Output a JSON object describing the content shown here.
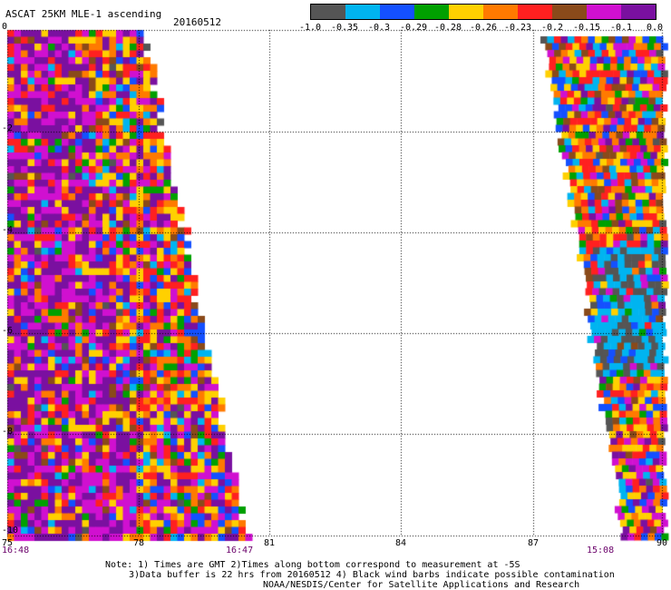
{
  "header": {
    "title": "ASCAT 25KM MLE-1 ascending",
    "date": "20160512"
  },
  "colorbar": {
    "colors": [
      "#555555",
      "#00b4f0",
      "#1450ff",
      "#00a000",
      "#ffd000",
      "#ff7a00",
      "#ff2020",
      "#8a4a1a",
      "#d010d0",
      "#7a10a0"
    ],
    "ticks": [
      "-1.0",
      "-0.35",
      "-0.3",
      "-0.29",
      "-0.28",
      "-0.26",
      "-0.23",
      "-0.2",
      "-0.15",
      "-0.1",
      "0.0"
    ]
  },
  "axes": {
    "x_ticks": [
      "75",
      "78",
      "81",
      "84",
      "87",
      "90"
    ],
    "y_ticks": [
      "0",
      "-2",
      "-4",
      "-6",
      "-8",
      "-10"
    ]
  },
  "time_labels": [
    "16:48",
    "16:47",
    "15:08"
  ],
  "notes": {
    "line1": "Note: 1) Times are GMT 2)Times along bottom correspond to measurement at -5S",
    "line2": "3)Data buffer is 22 hrs from 20160512 4) Black wind barbs indicate possible contamination",
    "line3": "NOAA/NESDIS/Center for Satellite Applications and Research"
  }
}
